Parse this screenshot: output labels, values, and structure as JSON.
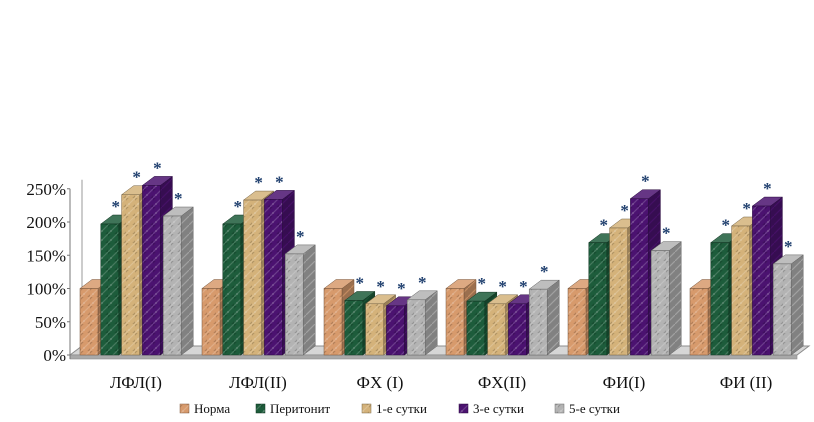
{
  "chart_data": {
    "type": "bar",
    "title": "",
    "xlabel": "",
    "ylabel": "",
    "ylim": [
      0,
      250
    ],
    "y_ticks": [
      0,
      50,
      100,
      150,
      200,
      250
    ],
    "y_tick_labels": [
      "0%",
      "50%",
      "100%",
      "150%",
      "200%",
      "250%"
    ],
    "grid": false,
    "three_d": true,
    "legend_position": "bottom",
    "categories": [
      "ЛФЛ(I)",
      "ЛФЛ(II)",
      "ФХ (I)",
      "ФХ(II)",
      "ФИ(I)",
      "ФИ (II)"
    ],
    "significance_marker": "*",
    "series": [
      {
        "name": "Норма",
        "color": "#d79a6c",
        "texture": "warm-marble",
        "values": [
          100,
          100,
          100,
          100,
          100,
          100
        ],
        "significant": [
          false,
          false,
          false,
          false,
          false,
          false
        ]
      },
      {
        "name": "Перитонит",
        "color": "#1d5c3b",
        "texture": "green-marble",
        "values": [
          197,
          197,
          82,
          81,
          169,
          169
        ],
        "significant": [
          true,
          true,
          true,
          true,
          true,
          true
        ]
      },
      {
        "name": "1-е сутки",
        "color": "#d4b27a",
        "texture": "straw",
        "values": [
          241,
          233,
          77,
          77,
          191,
          194
        ],
        "significant": [
          true,
          true,
          true,
          true,
          true,
          true
        ]
      },
      {
        "name": "3-е сутки",
        "color": "#4b1270",
        "texture": "purple",
        "values": [
          255,
          234,
          74,
          77,
          235,
          224
        ],
        "significant": [
          true,
          true,
          true,
          true,
          true,
          true
        ]
      },
      {
        "name": "5-е сутки",
        "color": "#b3b3b3",
        "texture": "granite",
        "values": [
          209,
          152,
          83,
          99,
          157,
          137
        ],
        "significant": [
          true,
          true,
          true,
          true,
          true,
          true
        ]
      }
    ]
  }
}
